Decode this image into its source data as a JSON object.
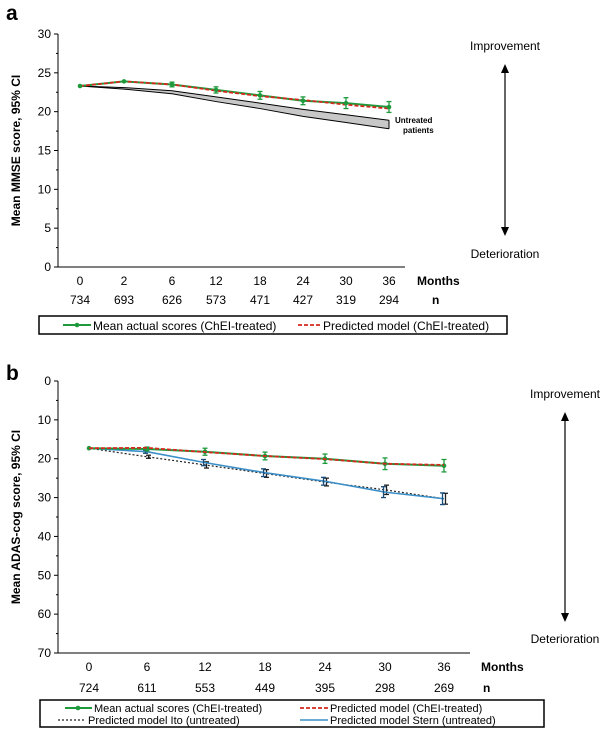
{
  "colors": {
    "actual": "#1e9a3c",
    "predicted": "#d42a1e",
    "ito": "#222222",
    "stern": "#3a8fc8",
    "untreated_band": "#c8c8c8",
    "axis": "#000000"
  },
  "chart_data": [
    {
      "panel": "a",
      "type": "line",
      "title": "",
      "ylabel": "Mean MMSE score, 95% CI",
      "xlabel": "Months",
      "ylim": [
        0,
        30
      ],
      "yticks": [
        0,
        5,
        10,
        15,
        20,
        25,
        30
      ],
      "categories": [
        "0",
        "2",
        "6",
        "12",
        "18",
        "24",
        "30",
        "36"
      ],
      "n_label": "n",
      "n_values": [
        "734",
        "693",
        "626",
        "573",
        "471",
        "427",
        "319",
        "294"
      ],
      "top_annotation": "Improvement",
      "bottom_annotation": "Deterioration",
      "band_label": [
        "Untreated",
        "patients"
      ],
      "series": [
        {
          "name": "Mean actual scores (ChEI-treated)",
          "key": "actual",
          "values": [
            23.3,
            23.9,
            23.5,
            22.8,
            22.1,
            21.4,
            21.1,
            20.6
          ],
          "ci": [
            0,
            0,
            0.3,
            0.4,
            0.5,
            0.5,
            0.7,
            0.7
          ]
        },
        {
          "name": "Predicted model (ChEI-treated)",
          "key": "predicted",
          "values": [
            23.3,
            23.9,
            23.5,
            22.7,
            22.0,
            21.5,
            20.9,
            20.4
          ]
        }
      ],
      "untreated_band": {
        "upper": [
          23.3,
          23.1,
          22.7,
          21.9,
          21.1,
          20.3,
          19.6,
          18.9
        ],
        "lower": [
          23.3,
          22.9,
          22.3,
          21.3,
          20.4,
          19.4,
          18.6,
          17.8
        ]
      }
    },
    {
      "panel": "b",
      "type": "line",
      "title": "",
      "ylabel": "Mean ADAS-cog score, 95% CI",
      "xlabel": "Months",
      "ylim": [
        70,
        0
      ],
      "yticks": [
        0,
        10,
        20,
        30,
        40,
        50,
        60,
        70
      ],
      "categories": [
        "0",
        "6",
        "12",
        "18",
        "24",
        "30",
        "36"
      ],
      "n_label": "n",
      "n_values": [
        "724",
        "611",
        "553",
        "449",
        "395",
        "298",
        "269"
      ],
      "top_annotation": "Improvement",
      "bottom_annotation": "Deterioration",
      "series": [
        {
          "name": "Mean actual scores (ChEI-treated)",
          "key": "actual",
          "values": [
            17.3,
            17.5,
            18.2,
            19.3,
            20.0,
            21.3,
            21.8
          ],
          "ci": [
            0,
            0.5,
            0.9,
            1.0,
            1.2,
            1.5,
            1.6
          ]
        },
        {
          "name": "Predicted model (ChEI-treated)",
          "key": "predicted",
          "values": [
            17.3,
            17.2,
            18.3,
            19.3,
            20.1,
            21.3,
            21.6
          ]
        },
        {
          "name": "Predicted model Ito (untreated)",
          "key": "ito",
          "values": [
            17.3,
            19.5,
            21.6,
            23.8,
            26.0,
            28.0,
            30.3
          ],
          "ci": [
            0,
            0.4,
            0.8,
            1.0,
            1.0,
            1.2,
            1.4
          ]
        },
        {
          "name": "Predicted model Stern (untreated)",
          "key": "stern",
          "values": [
            17.3,
            18.2,
            21.0,
            23.6,
            25.8,
            28.6,
            30.3
          ],
          "ci": [
            0,
            0.4,
            0.8,
            1.0,
            1.0,
            1.4,
            1.5
          ]
        }
      ]
    }
  ]
}
